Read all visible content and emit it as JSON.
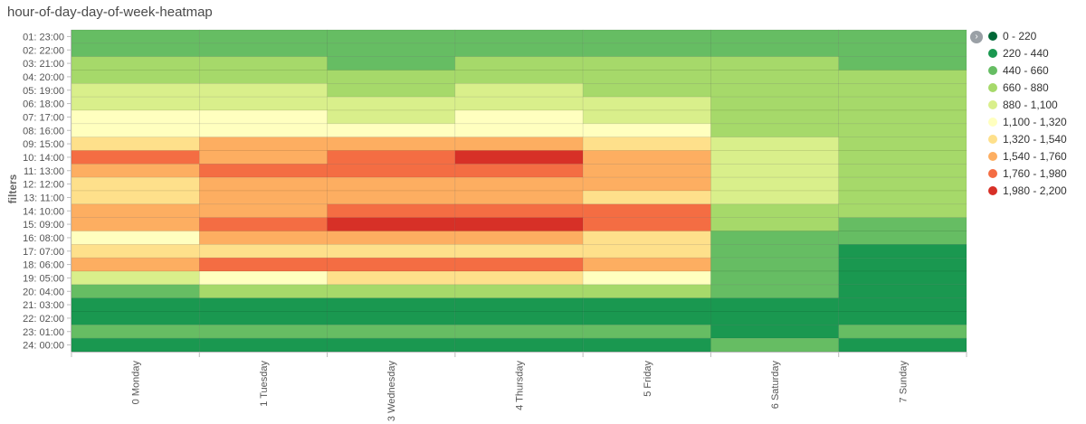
{
  "title": "hour-of-day-day-of-week-heatmap",
  "chart_data": {
    "type": "heatmap",
    "ylabel": "filters",
    "xlabel": "",
    "x_categories": [
      "0 Monday",
      "1 Tuesday",
      "3 Wednesday",
      "4 Thursday",
      "5 Friday",
      "6 Saturday",
      "7 Sunday"
    ],
    "y_categories": [
      "01: 23:00",
      "02: 22:00",
      "03: 21:00",
      "04: 20:00",
      "05: 19:00",
      "06: 18:00",
      "07: 17:00",
      "08: 16:00",
      "09: 15:00",
      "10: 14:00",
      "11: 13:00",
      "12: 12:00",
      "13: 11:00",
      "14: 10:00",
      "15: 09:00",
      "16: 08:00",
      "17: 07:00",
      "18: 06:00",
      "19: 05:00",
      "20: 04:00",
      "21: 03:00",
      "22: 02:00",
      "23: 01:00",
      "24: 00:00"
    ],
    "value_range_buckets": [
      "0 - 220",
      "220 - 440",
      "440 - 660",
      "660 - 880",
      "880 - 1,100",
      "1,100 - 1,320",
      "1,320 - 1,540",
      "1,540 - 1,760",
      "1,760 - 1,980",
      "1,980 - 2,200"
    ],
    "bucket_colors": [
      "#006837",
      "#1a9850",
      "#66bd63",
      "#a6d96a",
      "#d9ef8b",
      "#ffffbf",
      "#fee08b",
      "#fdae61",
      "#f46d43",
      "#d73027"
    ],
    "bucket_index_matrix": [
      [
        2,
        2,
        2,
        2,
        2,
        2,
        2
      ],
      [
        2,
        2,
        2,
        2,
        2,
        2,
        2
      ],
      [
        3,
        3,
        2,
        3,
        3,
        3,
        2
      ],
      [
        3,
        3,
        3,
        3,
        3,
        3,
        3
      ],
      [
        4,
        4,
        3,
        4,
        3,
        3,
        3
      ],
      [
        4,
        4,
        4,
        4,
        4,
        3,
        3
      ],
      [
        5,
        5,
        4,
        5,
        4,
        3,
        3
      ],
      [
        5,
        5,
        5,
        5,
        5,
        3,
        3
      ],
      [
        6,
        7,
        7,
        7,
        6,
        4,
        3
      ],
      [
        8,
        7,
        8,
        9,
        7,
        4,
        3
      ],
      [
        7,
        8,
        8,
        8,
        7,
        4,
        3
      ],
      [
        6,
        7,
        7,
        7,
        7,
        4,
        3
      ],
      [
        6,
        7,
        7,
        7,
        6,
        4,
        3
      ],
      [
        7,
        7,
        8,
        8,
        8,
        3,
        3
      ],
      [
        7,
        8,
        9,
        9,
        8,
        3,
        2
      ],
      [
        5,
        7,
        7,
        7,
        6,
        2,
        2
      ],
      [
        6,
        6,
        6,
        6,
        6,
        2,
        1
      ],
      [
        7,
        8,
        8,
        8,
        7,
        2,
        1
      ],
      [
        4,
        5,
        6,
        6,
        5,
        2,
        1
      ],
      [
        2,
        3,
        3,
        3,
        3,
        2,
        1
      ],
      [
        1,
        1,
        1,
        1,
        1,
        1,
        1
      ],
      [
        1,
        1,
        1,
        1,
        1,
        1,
        1
      ],
      [
        2,
        2,
        2,
        2,
        2,
        1,
        2
      ],
      [
        1,
        1,
        1,
        1,
        1,
        2,
        1
      ]
    ],
    "legend_position": "right",
    "grid": false
  }
}
